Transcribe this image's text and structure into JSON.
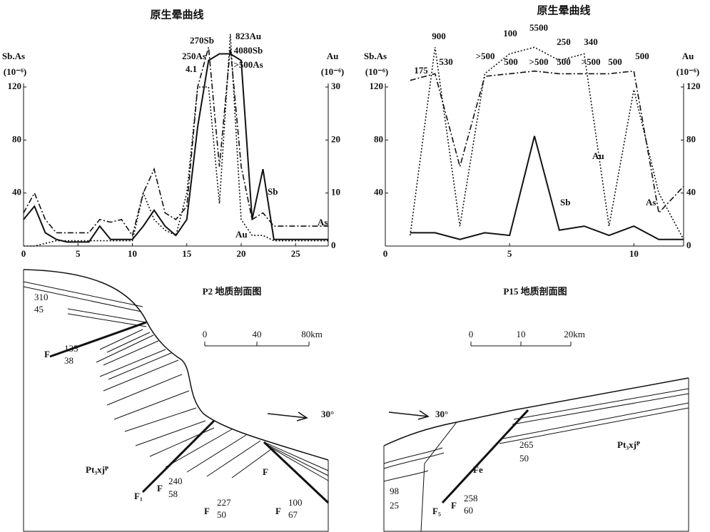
{
  "chart_data": [
    {
      "type": "line",
      "title": "原生晕曲线",
      "ylabel": "Sb.As",
      "yunit": "(10⁻⁶)",
      "y2label": "Au",
      "y2unit": "(10⁻⁶)",
      "x": [
        0,
        1,
        2,
        3,
        4,
        5,
        6,
        7,
        8,
        9,
        10,
        11,
        12,
        13,
        14,
        15,
        16,
        17,
        18,
        19,
        20,
        21,
        22,
        23,
        24,
        25,
        26,
        27,
        28
      ],
      "xlim": [
        0,
        28
      ],
      "xticks": [
        0,
        5,
        10,
        15,
        20,
        25
      ],
      "ylim": [
        0,
        120
      ],
      "yticks": [
        40,
        80,
        120
      ],
      "y2lim": [
        0,
        30
      ],
      "y2ticks": [
        0,
        10,
        20,
        30
      ],
      "series": [
        {
          "name": "Sb",
          "color": "#111111",
          "dash": "solid",
          "values": [
            20,
            30,
            10,
            5,
            3,
            3,
            3,
            15,
            5,
            5,
            5,
            15,
            27,
            15,
            8,
            20,
            90,
            140,
            145,
            145,
            140,
            20,
            58,
            5,
            5,
            5,
            5,
            5,
            5
          ]
        },
        {
          "name": "As",
          "color": "#111111",
          "dash": "dashdot",
          "values": [
            25,
            40,
            20,
            10,
            10,
            10,
            10,
            20,
            18,
            20,
            8,
            40,
            58,
            25,
            20,
            30,
            120,
            150,
            60,
            150,
            60,
            20,
            25,
            15,
            15,
            15,
            15,
            15,
            15
          ]
        },
        {
          "name": "Au",
          "color": "#111111",
          "dash": "dotted",
          "axis": "y2",
          "values": [
            0,
            0,
            0.5,
            1,
            1,
            1,
            1,
            1,
            1,
            1,
            1,
            10,
            5,
            3,
            2,
            10,
            30,
            30,
            8,
            40,
            5,
            2,
            2,
            1,
            1,
            1,
            1,
            1,
            1
          ]
        }
      ],
      "annotations": [
        "270Sb",
        "823Au",
        "250As",
        "4080Sb",
        "4.1",
        ">500As"
      ]
    },
    {
      "type": "line",
      "title": "原生晕曲线",
      "ylabel": "Sb.As",
      "yunit": "(10⁻⁶)",
      "y2label": "Au",
      "y2unit": "(10⁻⁶)",
      "x": [
        1,
        2,
        3,
        4,
        5,
        6,
        7,
        8,
        9,
        10,
        11,
        12
      ],
      "xlim": [
        0,
        12
      ],
      "xticks": [
        0,
        5,
        10
      ],
      "ylim": [
        0,
        120
      ],
      "yticks": [
        40,
        80,
        120
      ],
      "y2lim": [
        0,
        120
      ],
      "y2ticks": [
        0,
        40,
        80,
        120
      ],
      "series": [
        {
          "name": "Sb",
          "color": "#111111",
          "dash": "solid",
          "values": [
            10,
            10,
            5,
            10,
            8,
            83,
            12,
            15,
            8,
            15,
            5,
            5
          ]
        },
        {
          "name": "Au",
          "color": "#111111",
          "dash": "dotted",
          "axis": "y2",
          "values": [
            8,
            150,
            15,
            130,
            145,
            150,
            140,
            145,
            15,
            118,
            40,
            5
          ]
        },
        {
          "name": "As",
          "color": "#111111",
          "dash": "dashdot",
          "values": [
            125,
            130,
            60,
            128,
            130,
            132,
            130,
            130,
            130,
            132,
            25,
            45
          ]
        }
      ],
      "annotations": [
        "175",
        "900",
        "530",
        ">500",
        "100",
        "500",
        "5500",
        ">500",
        "250",
        "500",
        "340",
        ">500",
        "500",
        "500"
      ]
    }
  ],
  "sections": [
    {
      "title": "P2 地质剖面图",
      "scale": [
        "0",
        "40",
        "80km"
      ],
      "orientation": "30°",
      "labels": [
        "F",
        "Pt₃xjᴾ",
        "F₁",
        "F",
        "F",
        "F",
        "F"
      ],
      "attitudes": [
        [
          "310",
          "45"
        ],
        [
          "135",
          "38"
        ],
        [
          "240",
          "58"
        ],
        [
          "227",
          "50"
        ],
        [
          "100",
          "67"
        ]
      ]
    },
    {
      "title": "P15 地质剖面图",
      "scale": [
        "0",
        "10",
        "20km"
      ],
      "orientation": "30°",
      "labels": [
        "Fe",
        "F₅",
        "F",
        "Pt₃xjᴾ"
      ],
      "attitudes": [
        [
          "98",
          "25"
        ],
        [
          "258",
          "60"
        ],
        [
          "265",
          "50"
        ]
      ]
    }
  ]
}
